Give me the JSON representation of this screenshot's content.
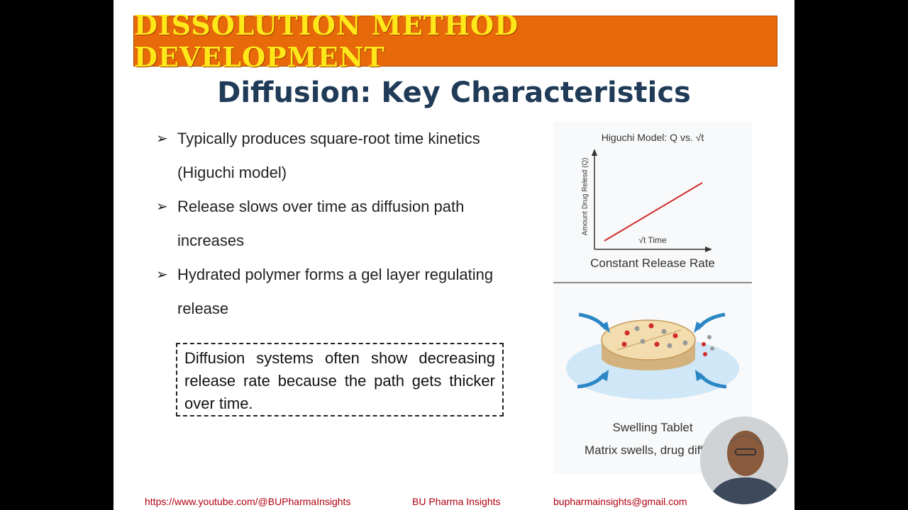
{
  "banner": {
    "title": "DISSOLUTION METHOD DEVELOPMENT"
  },
  "heading": "Diffusion: Key Characteristics",
  "bullets": [
    {
      "arrow": "➢",
      "text": "Typically produces square-root time kinetics (Higuchi model)"
    },
    {
      "arrow": "➢",
      "text": "Release slows over time as diffusion path increases"
    },
    {
      "arrow": "➢",
      "text": "Hydrated polymer forms a gel layer regulating release"
    }
  ],
  "note": "Diffusion systems often show decreasing release rate because the path gets thicker over time.",
  "figure": {
    "plot_title": "Higuchi Model: Q vs. √t",
    "y_axis_label": "Amount Drug Relesd (Q)",
    "x_axis_label": "√t Time",
    "plot_caption": "Constant Release Rate",
    "tablet_caption": "Swelling Tablet",
    "tablet_subcaption": "Matrix swells, drug diffu"
  },
  "footer": {
    "url": "https://www.youtube.com/@BUPharmaInsights",
    "channel": "BU Pharma Insights",
    "email": "bupharmainsights@gmail.com"
  },
  "colors": {
    "banner_bg": "#e8690a",
    "banner_text": "#ffe81a",
    "heading": "#1f3b57",
    "line": "#d12a2a",
    "footer": "#b00010"
  }
}
